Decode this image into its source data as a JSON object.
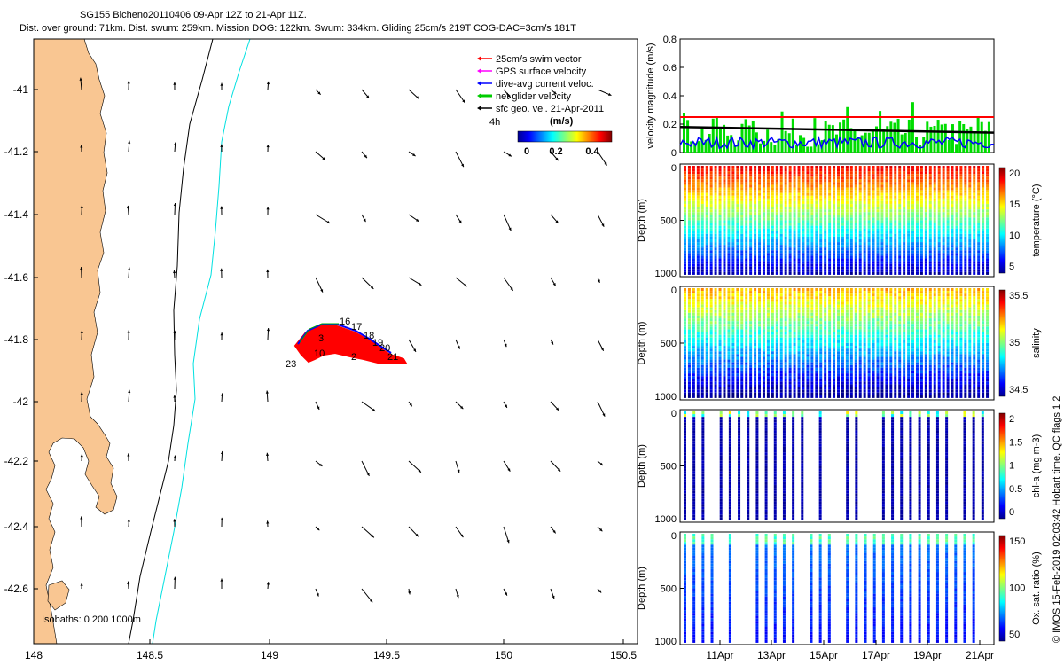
{
  "title_line1": "SG155 Bicheno20110406 09-Apr 12Z to 21-Apr 11Z.",
  "title_line2": "Dist. over ground: 71km. Dist. swum: 259km. Mission DOG: 122km. Swum: 334km. Gliding 25cm/s 219T COG-DAC=3cm/s 181T",
  "side_credit": "© IMOS 15-Feb-2019 02:03:42 Hobart time. QC flags 1  2",
  "map": {
    "lon_ticks": [
      "148",
      "148.5",
      "149",
      "149.5",
      "150",
      "150.5"
    ],
    "lat_ticks": [
      "-41",
      "-41.2",
      "-41.4",
      "-41.6",
      "-41.8",
      "-42",
      "-42.2",
      "-42.4",
      "-42.6"
    ],
    "isobaths_label": "Isobaths: 0   200  1000m",
    "legend": [
      {
        "label": "25cm/s swim vector",
        "color": "#ff0000"
      },
      {
        "label": "GPS surface velocity",
        "color": "#ff00ff"
      },
      {
        "label": "dive-avg current veloc.",
        "color": "#0000ff"
      },
      {
        "label": "net glider velocity",
        "color": "#00cc00"
      },
      {
        "label": "sfc geo. vel. 21-Apr-2011",
        "color": "#000000"
      }
    ],
    "legend_extra": "4h",
    "colorbar_unit": "(m/s)",
    "colorbar_ticks": [
      "0",
      "0.2",
      "0.4"
    ],
    "track_labels": [
      "16",
      "17",
      "18",
      "19",
      "20",
      "21",
      "2",
      "3",
      "10",
      "23"
    ]
  },
  "chart_data": [
    {
      "type": "line",
      "title": "velocity magnitude",
      "ylabel": "velocity magnitude (m/s)",
      "ylim": [
        0,
        0.8
      ],
      "yticks": [
        "0",
        "0.2",
        "0.4",
        "0.6",
        "0.8"
      ],
      "reference_line": 0.25,
      "series": [
        {
          "name": "net glider velocity",
          "color": "#00dd00",
          "style": "bars"
        },
        {
          "name": "dive-avg current",
          "color": "#0000ff",
          "style": "line"
        },
        {
          "name": "surface geostrophic",
          "color": "#000000",
          "style": "line",
          "values_start_end": [
            0.18,
            0.14
          ]
        }
      ]
    },
    {
      "type": "heatmap",
      "ylabel": "Depth (m)",
      "yticks": [
        "0",
        "500",
        "1000"
      ],
      "cbar_label": "temperature (°C)",
      "cbar_ticks": [
        "20",
        "15",
        "10",
        "5"
      ]
    },
    {
      "type": "heatmap",
      "ylabel": "Depth (m)",
      "yticks": [
        "0",
        "500",
        "1000"
      ],
      "cbar_label": "salinity",
      "cbar_ticks": [
        "35.5",
        "35",
        "34.5"
      ]
    },
    {
      "type": "heatmap",
      "ylabel": "Depth (m)",
      "yticks": [
        "0",
        "500",
        "1000"
      ],
      "cbar_label": "chl-a (mg m-3)",
      "cbar_ticks": [
        "2",
        "1.5",
        "1",
        "0.5",
        "0"
      ]
    },
    {
      "type": "heatmap",
      "ylabel": "Depth (m)",
      "yticks": [
        "0",
        "500",
        "1000"
      ],
      "cbar_label": "Ox. sat. ratio (%)",
      "cbar_ticks": [
        "150",
        "100",
        "50"
      ]
    }
  ],
  "time_ticks": [
    "11Apr",
    "13Apr",
    "15Apr",
    "17Apr",
    "19Apr",
    "21Apr"
  ]
}
